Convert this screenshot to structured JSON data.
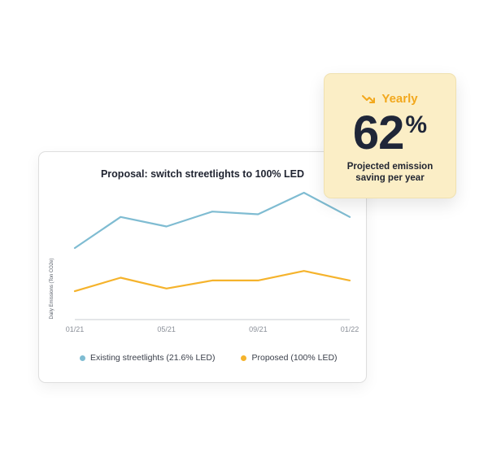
{
  "chart_data": {
    "type": "line",
    "title": "Proposal: switch streetlights to 100% LED",
    "xlabel": "",
    "ylabel": "Daily Emissions (Ton CO2e)",
    "ylim": [
      0,
      100
    ],
    "x": [
      0,
      1,
      2,
      3,
      4,
      5,
      6
    ],
    "xticks": [
      {
        "x": 0,
        "label": "01/21"
      },
      {
        "x": 2,
        "label": "05/21"
      },
      {
        "x": 4,
        "label": "09/21"
      },
      {
        "x": 6,
        "label": "01/22"
      }
    ],
    "series": [
      {
        "name": "Existing streetlights (21.6% LED)",
        "color": "#7fbcd2",
        "values": [
          53,
          76,
          69,
          80,
          78,
          94,
          76
        ]
      },
      {
        "name": "Proposed (100% LED)",
        "color": "#f5b32c",
        "values": [
          21,
          31,
          23,
          29,
          29,
          36,
          29
        ]
      }
    ],
    "grid": false,
    "legend_position": "bottom"
  },
  "stat": {
    "period": "Yearly",
    "value": "62",
    "unit": "%",
    "caption_line1": "Projected emission",
    "caption_line2": "saving per year",
    "accent_color": "#f2a81d",
    "icon": "trend-down-icon"
  }
}
